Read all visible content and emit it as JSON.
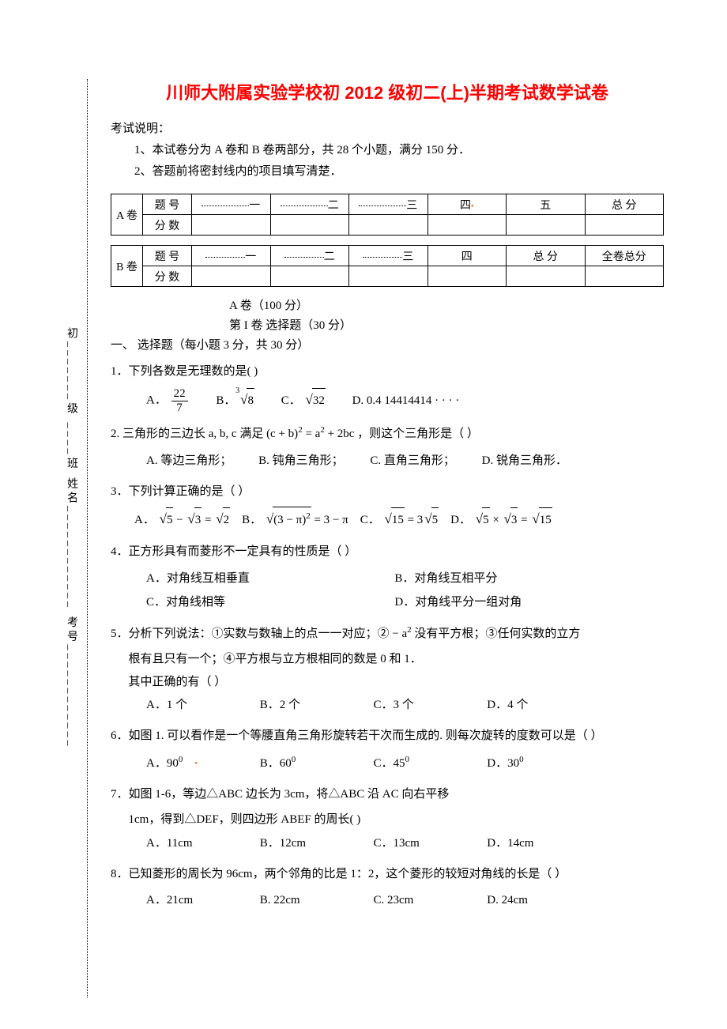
{
  "colors": {
    "title": "#ff0000",
    "text": "#000000",
    "bg": "#ffffff",
    "marker": "#ed7d31"
  },
  "bindingMargin": "初_______级  ____班         姓名____________    考号____________",
  "title": "川师大附属实验学校初 2012 级初二(上)半期考试数学试卷",
  "instr_label": "考试说明：",
  "instr_1": "1、本试卷分为 A 卷和 B 卷两部分，共 28 个小题，满分 150 分．",
  "instr_2": "2、答题前将密封线内的项目填写清楚．",
  "tableA": {
    "rowlabel": "A 卷",
    "r1": [
      "题  号",
      "一",
      "二",
      "三",
      "四",
      "五",
      "总  分"
    ],
    "r2_label": "分  数"
  },
  "tableB": {
    "rowlabel": "B 卷",
    "r1": [
      "题  号",
      "一",
      "二",
      "三",
      "四",
      "总  分",
      "全卷总分"
    ],
    "r2_label": "分  数"
  },
  "paperA_heading": "A 卷（100 分）",
  "part1_heading": "第 I 卷    选择题（30 分）",
  "section1_label": "一、    选择题（每小题 3 分，共 30 分）",
  "q1": {
    "stem": "1．下列各数是无理数的是(      )",
    "A_label": "A．",
    "A_num": "22",
    "A_den": "7",
    "B_label": "B．",
    "B_idx": "3",
    "B_rad": "8",
    "C_label": "C．",
    "C_rad": "32",
    "D": "D.   0.4 14414414 · · · ·"
  },
  "q2": {
    "stem_pre": "2. 三角形的三边长 a, b, c 满足 (c + b)",
    "stem_mid": " = a",
    "stem_post": " + 2bc ，则这个三角形是（    ）",
    "A": "A. 等边三角形；",
    "B": "B. 钝角三角形；",
    "C": "C. 直角三角形；",
    "D": "D. 锐角三角形．"
  },
  "q3": {
    "stem": "3．下列计算正确的是（    ）",
    "A_pre": "A．",
    "B_pre": "B．",
    "C_pre": "C．",
    "D_pre": "D．"
  },
  "q4": {
    "stem": "4．正方形具有而菱形不一定具有的性质是（    ）",
    "A": "A．对角线互相垂直",
    "B": "B．对角线互相平分",
    "C": "C．对角线相等",
    "D": "D．对角线平分一组对角"
  },
  "q5": {
    "stem_1": "5．分析下列说法：①实数与数轴上的点一一对应；② − a",
    "stem_2": " 没有平方根；③任何实数的立方",
    "stem_3": "根有且只有一个；④平方根与立方根相同的数是 0 和 1．",
    "stem_4": "其中正确的有（      ）",
    "A": "A．1 个",
    "B": "B．2 个",
    "C": "C．3 个",
    "D": "D．4 个"
  },
  "q6": {
    "stem": "6．如图 1. 可以看作是一个等腰直角三角形旋转若干次而生成的. 则每次旋转的度数可以是（      ）",
    "A": "A．90",
    "B": "B．60",
    "C": "C．45",
    "D": "D．30"
  },
  "q7": {
    "stem_1": "7．如图 1-6，等边△ABC 边长为 3cm，将△ABC 沿 AC 向右平移",
    "stem_2": "1cm，得到△DEF，则四边形 ABEF 的周长(      )",
    "A": "A．11cm",
    "B": "B．12cm",
    "C": "C．13cm",
    "D": "D．14cm"
  },
  "q8": {
    "stem": "8．已知菱形的周长为 96cm，两个邻角的比是 1：2，这个菱形的较短对角线的长是（      ）",
    "A": "A．21cm",
    "B": "B. 22cm",
    "C": "C. 23cm",
    "D": "D. 24cm"
  }
}
